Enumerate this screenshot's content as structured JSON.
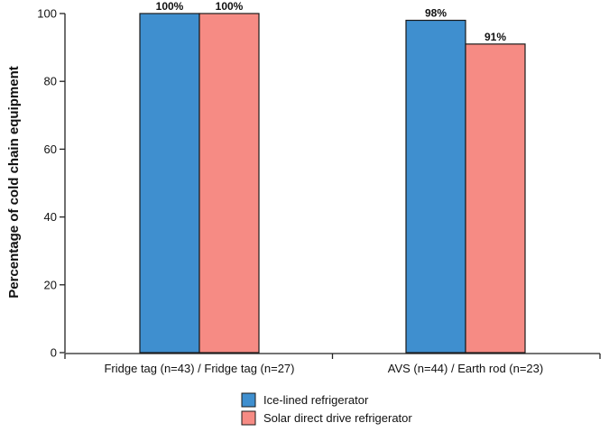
{
  "chart_data": {
    "type": "bar",
    "title": "",
    "xlabel": "",
    "ylabel": "Percentage of cold chain equipment",
    "ylim": [
      0,
      100
    ],
    "yticks": [
      0,
      20,
      40,
      60,
      80,
      100
    ],
    "categories": [
      "Fridge tag (n=43) / Fridge tag (n=27)",
      "AVS (n=44) / Earth rod (n=23)"
    ],
    "series": [
      {
        "name": "Ice-lined refrigerator",
        "color": "#3f8fcf",
        "values": [
          100,
          98
        ],
        "labels": [
          "100%",
          "98%"
        ]
      },
      {
        "name": "Solar direct drive refrigerator",
        "color": "#f68b84",
        "values": [
          100,
          91
        ],
        "labels": [
          "100%",
          "91%"
        ]
      }
    ],
    "legend": {
      "placement": "bottom-center"
    },
    "grid": false
  }
}
